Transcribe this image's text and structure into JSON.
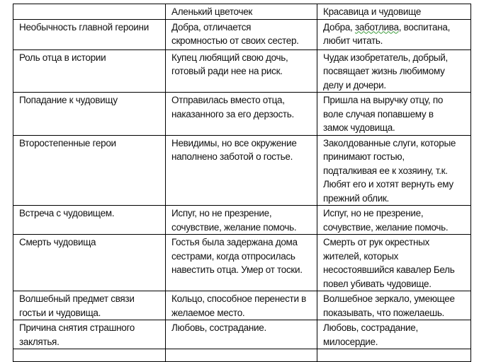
{
  "header": [
    "",
    "Аленький цветочек",
    "Красавица и чудовище"
  ],
  "rows": [
    {
      "label": [
        "Необычность главной героини"
      ],
      "a": [
        "Добра, отличается",
        "скромностью от своих сестер."
      ],
      "b": [
        "Добра, заботлива, воспитана,",
        "любит читать."
      ]
    },
    {
      "label": [
        "Роль отца в истории"
      ],
      "a": [
        "Купец любящий свою дочь,",
        "готовый ради нее на риск."
      ],
      "b": [
        "Чудак изобретатель, добрый,",
        "посвящает жизнь любимому",
        "делу и дочери."
      ]
    },
    {
      "label": [
        "Попадание к чудовищу"
      ],
      "a": [
        "Отправилась вместо отца,",
        "наказанного за его дерзость."
      ],
      "b": [
        "Пришла на выручку отцу, по",
        "воле случая попавшему в",
        "замок чудовища."
      ]
    },
    {
      "label": [
        "Второстепенные герои"
      ],
      "a": [
        "Невидимы, но все окружение",
        "наполнено заботой о гостье."
      ],
      "b": [
        "Заколдованные слуги, которые",
        "принимают гостью,",
        "подталкивая ее к хозяину, т.к.",
        "Любят его и хотят вернуть ему",
        "прежний облик."
      ]
    },
    {
      "label": [
        "Встреча с чудовищем."
      ],
      "a": [
        "Испуг, но не презрение,",
        "сочувствие, желание помочь."
      ],
      "b": [
        "Испуг, но не презрение,",
        "сочувствие, желание помочь."
      ]
    },
    {
      "label": [
        "Смерть чудовища"
      ],
      "a": [
        "Гостья была задержана дома",
        "сестрами, когда отпросилась",
        "навестить отца. Умер от тоски."
      ],
      "b": [
        "Смерть от рук окрестных",
        "жителей, которых",
        "несостоявшийся кавалер Бель",
        "повел убивать чудовище."
      ]
    },
    {
      "label": [
        "Волшебный предмет связи",
        "гостьи и чудовища."
      ],
      "a": [
        "Кольцо, способное перенести в",
        "желаемое место."
      ],
      "b": [
        "Волшебное зеркало, умеющее",
        "показывать, что пожелаешь."
      ]
    },
    {
      "label": [
        "Причина снятия страшного",
        "заклятья."
      ],
      "a": [
        "Любовь, сострадание."
      ],
      "b": [
        "Любовь, сострадание,",
        "милосердие."
      ]
    },
    {
      "label": [
        ""
      ],
      "a": [
        ""
      ],
      "b": [
        ""
      ]
    }
  ]
}
